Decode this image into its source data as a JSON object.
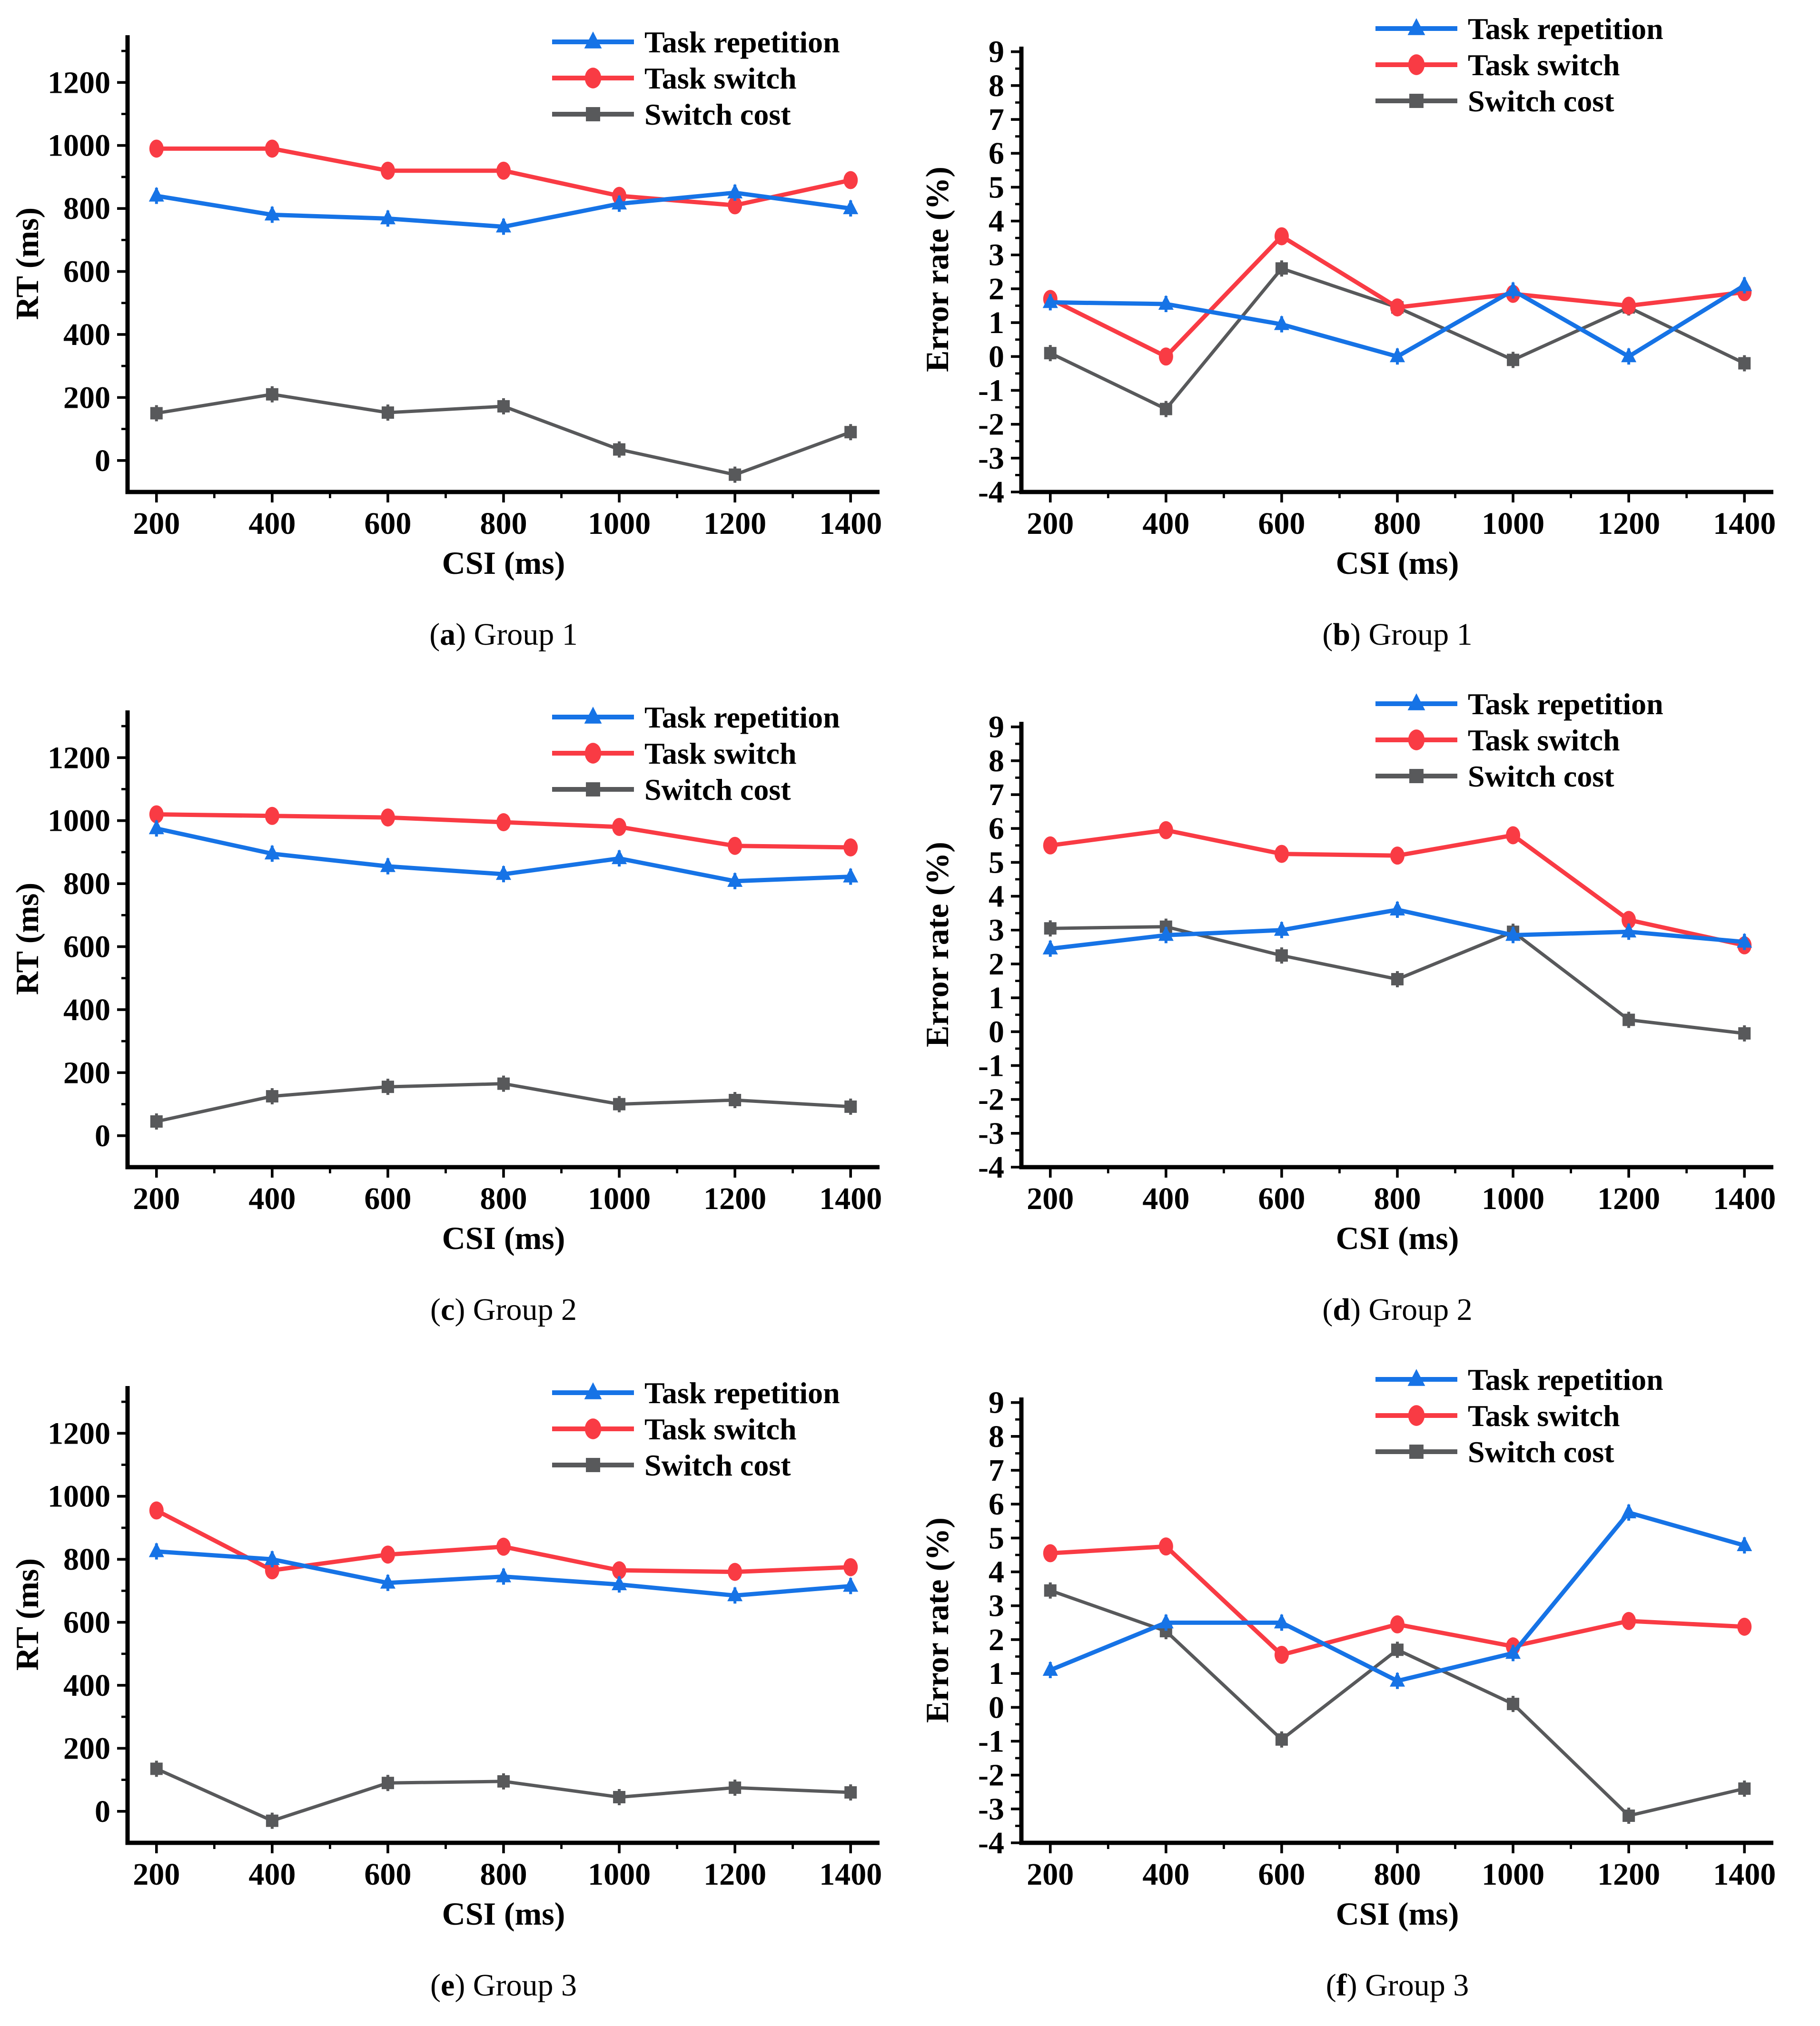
{
  "figure": {
    "xlabel": "CSI (ms)",
    "background": "#FFFFFF",
    "axis_color": "#000000",
    "legend": [
      {
        "label": "Task repetition",
        "color": "#1673E6",
        "marker": "triangle"
      },
      {
        "label": "Task switch",
        "color": "#F93B44",
        "marker": "circle"
      },
      {
        "label": "Switch cost",
        "color": "#58595B",
        "marker": "square"
      }
    ]
  },
  "chart_data": [
    {
      "id": "a",
      "type": "line",
      "caption": {
        "open": "(",
        "letter": "a",
        "close": ")",
        "text": " Group 1"
      },
      "xlabel": "CSI (ms)",
      "ylabel": "RT (ms)",
      "x": [
        200,
        400,
        600,
        800,
        1000,
        1200,
        1400
      ],
      "xlim": [
        150,
        1450
      ],
      "ylim": [
        -100,
        1350
      ],
      "xticks_minor": [
        300,
        500,
        700,
        900,
        1100,
        1300
      ],
      "yticks_major": [
        0,
        200,
        400,
        600,
        800,
        1000,
        1200
      ],
      "yticks_minor": [
        100,
        300,
        500,
        700,
        900,
        1100,
        1300
      ],
      "legend_position": "top-right",
      "grid": "off",
      "series": [
        {
          "name": "Task repetition",
          "values": [
            840,
            780,
            768,
            742,
            815,
            850,
            800
          ]
        },
        {
          "name": "Task switch",
          "values": [
            990,
            990,
            920,
            920,
            840,
            810,
            890
          ]
        },
        {
          "name": "Switch cost",
          "values": [
            150,
            210,
            152,
            172,
            35,
            -45,
            90
          ]
        }
      ]
    },
    {
      "id": "b",
      "type": "line",
      "caption": {
        "open": "(",
        "letter": "b",
        "close": ")",
        "text": " Group 1"
      },
      "xlabel": "CSI (ms)",
      "ylabel": "Error rate (%)",
      "x": [
        200,
        400,
        600,
        800,
        1000,
        1200,
        1400
      ],
      "xlim": [
        150,
        1450
      ],
      "ylim": [
        -4,
        9.15
      ],
      "xticks_minor": [
        300,
        500,
        700,
        900,
        1100,
        1300
      ],
      "yticks_major": [
        9,
        8,
        7,
        6,
        5,
        4,
        3,
        2,
        1,
        0,
        -1,
        -2,
        -3,
        -4
      ],
      "yticks_minor": [
        8.5,
        7.5,
        6.5,
        5.5,
        4.5,
        3.5,
        2.5,
        1.5,
        0.5,
        -0.5,
        -1.5,
        -2.5,
        -3.5
      ],
      "legend_position": "top-right",
      "grid": "off",
      "series": [
        {
          "name": "Task repetition",
          "values": [
            1.6,
            1.55,
            0.95,
            0.0,
            1.95,
            0.0,
            2.1
          ]
        },
        {
          "name": "Task switch",
          "values": [
            1.7,
            0.0,
            3.55,
            1.45,
            1.85,
            1.5,
            1.9
          ]
        },
        {
          "name": "Switch cost",
          "values": [
            0.1,
            -1.55,
            2.6,
            1.45,
            -0.1,
            1.45,
            -0.2
          ]
        }
      ]
    },
    {
      "id": "c",
      "type": "line",
      "caption": {
        "open": "(",
        "letter": "c",
        "close": ")",
        "text": " Group 2"
      },
      "xlabel": "CSI (ms)",
      "ylabel": "RT (ms)",
      "x": [
        200,
        400,
        600,
        800,
        1000,
        1200,
        1400
      ],
      "xlim": [
        150,
        1450
      ],
      "ylim": [
        -100,
        1350
      ],
      "xticks_minor": [
        300,
        500,
        700,
        900,
        1100,
        1300
      ],
      "yticks_major": [
        0,
        200,
        400,
        600,
        800,
        1000,
        1200
      ],
      "yticks_minor": [
        100,
        300,
        500,
        700,
        900,
        1100,
        1300
      ],
      "legend_position": "top-right",
      "grid": "off",
      "series": [
        {
          "name": "Task repetition",
          "values": [
            975,
            895,
            855,
            830,
            880,
            808,
            822
          ]
        },
        {
          "name": "Task switch",
          "values": [
            1020,
            1015,
            1010,
            995,
            980,
            920,
            915
          ]
        },
        {
          "name": "Switch cost",
          "values": [
            45,
            125,
            155,
            165,
            100,
            113,
            92
          ]
        }
      ]
    },
    {
      "id": "d",
      "type": "line",
      "caption": {
        "open": "(",
        "letter": "d",
        "close": ")",
        "text": " Group 2"
      },
      "xlabel": "CSI (ms)",
      "ylabel": "Error rate (%)",
      "x": [
        200,
        400,
        600,
        800,
        1000,
        1200,
        1400
      ],
      "xlim": [
        150,
        1450
      ],
      "ylim": [
        -4,
        9.15
      ],
      "xticks_minor": [
        300,
        500,
        700,
        900,
        1100,
        1300
      ],
      "yticks_major": [
        9,
        8,
        7,
        6,
        5,
        4,
        3,
        2,
        1,
        0,
        -1,
        -2,
        -3,
        -4
      ],
      "yticks_minor": [
        8.5,
        7.5,
        6.5,
        5.5,
        4.5,
        3.5,
        2.5,
        1.5,
        0.5,
        -0.5,
        -1.5,
        -2.5,
        -3.5
      ],
      "legend_position": "top-right",
      "grid": "off",
      "series": [
        {
          "name": "Task repetition",
          "values": [
            2.45,
            2.85,
            3.0,
            3.6,
            2.85,
            2.95,
            2.65
          ]
        },
        {
          "name": "Task switch",
          "values": [
            5.5,
            5.95,
            5.25,
            5.2,
            5.8,
            3.3,
            2.55
          ]
        },
        {
          "name": "Switch cost",
          "values": [
            3.05,
            3.1,
            2.25,
            1.55,
            2.95,
            0.35,
            -0.05
          ]
        }
      ]
    },
    {
      "id": "e",
      "type": "line",
      "caption": {
        "open": "(",
        "letter": "e",
        "close": ")",
        "text": " Group 3"
      },
      "xlabel": "CSI (ms)",
      "ylabel": "RT (ms)",
      "x": [
        200,
        400,
        600,
        800,
        1000,
        1200,
        1400
      ],
      "xlim": [
        150,
        1450
      ],
      "ylim": [
        -100,
        1350
      ],
      "xticks_minor": [
        300,
        500,
        700,
        900,
        1100,
        1300
      ],
      "yticks_major": [
        0,
        200,
        400,
        600,
        800,
        1000,
        1200
      ],
      "yticks_minor": [
        100,
        300,
        500,
        700,
        900,
        1100,
        1300
      ],
      "legend_position": "top-right",
      "grid": "off",
      "series": [
        {
          "name": "Task repetition",
          "values": [
            825,
            800,
            725,
            745,
            720,
            685,
            715
          ]
        },
        {
          "name": "Task switch",
          "values": [
            955,
            765,
            815,
            840,
            765,
            760,
            775
          ]
        },
        {
          "name": "Switch cost",
          "values": [
            135,
            -30,
            90,
            95,
            45,
            75,
            60
          ]
        }
      ]
    },
    {
      "id": "f",
      "type": "line",
      "caption": {
        "open": "(",
        "letter": "f",
        "close": ")",
        "text": " Group 3"
      },
      "xlabel": "CSI (ms)",
      "ylabel": "Error rate (%)",
      "x": [
        200,
        400,
        600,
        800,
        1000,
        1200,
        1400
      ],
      "xlim": [
        150,
        1450
      ],
      "ylim": [
        -4,
        9.15
      ],
      "xticks_minor": [
        300,
        500,
        700,
        900,
        1100,
        1300
      ],
      "yticks_major": [
        9,
        8,
        7,
        6,
        5,
        4,
        3,
        2,
        1,
        0,
        -1,
        -2,
        -3,
        -4
      ],
      "yticks_minor": [
        8.5,
        7.5,
        6.5,
        5.5,
        4.5,
        3.5,
        2.5,
        1.5,
        0.5,
        -0.5,
        -1.5,
        -2.5,
        -3.5
      ],
      "legend_position": "top-right",
      "grid": "off",
      "series": [
        {
          "name": "Task repetition",
          "values": [
            1.1,
            2.5,
            2.5,
            0.78,
            1.6,
            5.75,
            4.78
          ]
        },
        {
          "name": "Task switch",
          "values": [
            4.55,
            4.75,
            1.55,
            2.45,
            1.8,
            2.55,
            2.38
          ]
        },
        {
          "name": "Switch cost",
          "values": [
            3.45,
            2.25,
            -0.95,
            1.7,
            0.1,
            -3.2,
            -2.4
          ]
        }
      ]
    }
  ]
}
